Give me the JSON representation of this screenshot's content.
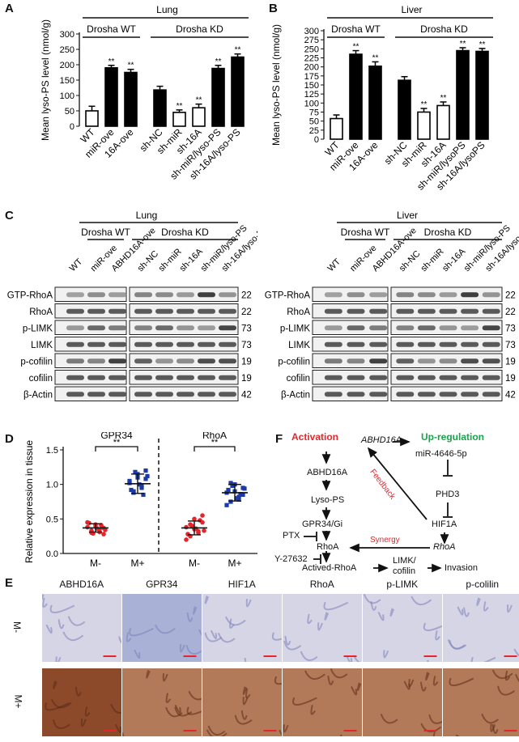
{
  "panels": {
    "A": "A",
    "B": "B",
    "C": "C",
    "D": "D",
    "E": "E",
    "F": "F"
  },
  "yaxis_A": "Mean lyso-PS level (nmol/g)",
  "yaxis_B": "Mean lyso-PS level (nmol/g)",
  "sig": "**",
  "chart_data": [
    {
      "type": "bar",
      "title": "Lung",
      "groups": [
        {
          "name": "Drosha WT",
          "categories": [
            "WT",
            "miR-ove",
            "16A-ove"
          ]
        },
        {
          "name": "Drosha KD",
          "categories": [
            "sh-NC",
            "sh-miR",
            "sh-16A",
            "sh-miR/lyso-PS",
            "sh-16A/lyso-PS"
          ]
        }
      ],
      "categories": [
        "WT",
        "miR-ove",
        "16A-ove",
        "sh-NC",
        "sh-miR",
        "sh-16A",
        "sh-miR/lyso-PS",
        "sh-16A/lyso-PS"
      ],
      "values": [
        50,
        190,
        175,
        118,
        45,
        60,
        188,
        225
      ],
      "errors": [
        15,
        8,
        10,
        12,
        8,
        12,
        10,
        10
      ],
      "fill": [
        "white",
        "black",
        "black",
        "black",
        "white",
        "white",
        "black",
        "black"
      ],
      "significance": [
        "",
        "**",
        "**",
        "",
        "**",
        "**",
        "**",
        "**"
      ],
      "ylabel": "Mean lyso-PS level (nmol/g)",
      "ylim": [
        0,
        300
      ],
      "yticks": [
        "0",
        "50",
        "100",
        "150",
        "200",
        "250",
        "300"
      ]
    },
    {
      "type": "bar",
      "title": "Liver",
      "groups": [
        {
          "name": "Drosha WT",
          "categories": [
            "WT",
            "miR-ove",
            "16A-ove"
          ]
        },
        {
          "name": "Drosha KD",
          "categories": [
            "sh-NC",
            "sh-miR",
            "sh-16A",
            "sh-miR/lysoPS",
            "sh-16A/lysoPS"
          ]
        }
      ],
      "categories": [
        "WT",
        "miR-ove",
        "16A-ove",
        "sh-NC",
        "sh-miR",
        "sh-16A",
        "sh-miR/lysoPS",
        "sh-16A/lysoPS"
      ],
      "values": [
        57,
        235,
        202,
        163,
        75,
        93,
        245,
        243
      ],
      "errors": [
        10,
        10,
        12,
        10,
        10,
        10,
        8,
        8
      ],
      "fill": [
        "white",
        "black",
        "black",
        "black",
        "white",
        "white",
        "black",
        "black"
      ],
      "significance": [
        "",
        "**",
        "**",
        "",
        "**",
        "**",
        "**",
        "**"
      ],
      "ylabel": "Mean lyso-PS level (nmol/g)",
      "ylim": [
        0,
        300
      ],
      "yticks": [
        "0",
        "25",
        "50",
        "75",
        "100",
        "125",
        "150",
        "175",
        "200",
        "225",
        "250",
        "275",
        "300"
      ]
    },
    {
      "type": "scatter",
      "ylabel": "Relative expression in tissue",
      "ylim": [
        0,
        1.5
      ],
      "yticks": [
        "0.0",
        "0.5",
        "1.0",
        "1.5"
      ],
      "categories": [
        "M-",
        "M+",
        "M-",
        "M+"
      ],
      "groups": [
        {
          "name": "GPR34",
          "points": {
            "M-": [
              0.38,
              0.3,
              0.42,
              0.35,
              0.28,
              0.45,
              0.33,
              0.4,
              0.31,
              0.37,
              0.44,
              0.29,
              0.36,
              0.41,
              0.34
            ],
            "M+": [
              1.02,
              0.9,
              1.15,
              0.95,
              1.2,
              1.05,
              0.88,
              1.1,
              0.98,
              1.08,
              0.92,
              1.18,
              1.0,
              0.85,
              1.12
            ]
          },
          "mean": [
            0.37,
            1.01
          ],
          "sd": [
            0.06,
            0.14
          ]
        },
        {
          "name": "RhoA",
          "points": {
            "M-": [
              0.38,
              0.25,
              0.5,
              0.32,
              0.45,
              0.2,
              0.42,
              0.35,
              0.3,
              0.55,
              0.28,
              0.4,
              0.36,
              0.48,
              0.33
            ],
            "M+": [
              0.88,
              0.75,
              1.0,
              0.82,
              0.95,
              0.7,
              1.02,
              0.9,
              0.78,
              0.85,
              0.92,
              0.98,
              0.8,
              0.86,
              0.94
            ]
          },
          "mean": [
            0.37,
            0.88
          ],
          "sd": [
            0.1,
            0.12
          ]
        }
      ],
      "significance": [
        "**",
        "**"
      ]
    }
  ],
  "blotA": {
    "tissue": "Lung",
    "groups": [
      "Drosha WT",
      "Drosha KD"
    ],
    "lanes": [
      "WT",
      "miR-ove",
      "ABHD16A-ove",
      "sh-NC",
      "sh-miR",
      "sh-16A",
      "sh-miR/lyso-PS",
      "sh-16A/lyso-PS"
    ],
    "rows": [
      "GTP-RhoA",
      "RhoA",
      "p-LIMK",
      "LIMK",
      "p-cofilin",
      "cofilin",
      "β-Actin"
    ],
    "kda": [
      "22",
      "22",
      "73",
      "73",
      "19",
      "19",
      "42"
    ]
  },
  "blotB": {
    "tissue": "Liver",
    "groups": [
      "Drosha WT",
      "Drosha KD"
    ],
    "lanes": [
      "WT",
      "miR-ove",
      "ABHD16A-ove",
      "sh-NC",
      "sh-miR",
      "sh-16A",
      "sh-miR/lyso-PS",
      "sh-16A/lyso-PS"
    ],
    "rows": [
      "GTP-RhoA",
      "RhoA",
      "p-LIMK",
      "LIMK",
      "p-cofilin",
      "cofilin",
      "β-Actin"
    ],
    "kda": [
      "22",
      "22",
      "73",
      "73",
      "19",
      "19",
      "42"
    ]
  },
  "ihc": {
    "cols": [
      "ABHD16A",
      "GPR34",
      "HIF1A",
      "RhoA",
      "p-LIMK",
      "p-colilin"
    ],
    "rows": [
      "M-",
      "M+"
    ]
  },
  "pathway": {
    "activation": "Activation",
    "upregulation": "Up-regulation",
    "abhd16a_gene": "ABHD16A",
    "mir": "miR-4646-5p",
    "abhd16a": "ABHD16A",
    "phd3": "PHD3",
    "lysops": "Lyso-PS",
    "feedback": "Feedback",
    "gpr34": "GPR34/Gi",
    "hif1a": "HIF1A",
    "ptx": "PTX",
    "synergy": "Synergy",
    "rhoa": "RhoA",
    "rhoa_gene": "RhoA",
    "y27632": "Y-27632",
    "actived": "Actived-RhoA",
    "limk": "LIMK/",
    "cofilin": "cofilin",
    "invasion": "Invasion"
  },
  "colors": {
    "red": "#e3262b",
    "green": "#1aa34a",
    "blue": "#1a3aa8",
    "ihc_neg": "#c9cde4",
    "ihc_pos": "#9c5a3c"
  }
}
